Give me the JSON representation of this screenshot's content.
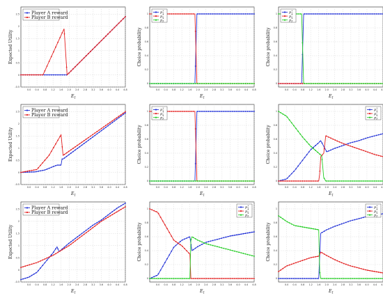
{
  "figure": {
    "xlabel_rows": [
      "E_1",
      "E_1",
      "E_1"
    ],
    "colors": {
      "player_a": "#1f2fd6",
      "player_b": "#e31f1f",
      "p1": "#1f2fd6",
      "p2": "#e31f1f",
      "p3": "#22cc22",
      "grid": "#cfcfcf"
    }
  },
  "chart_data": [
    {
      "type": "line",
      "row": 0,
      "col": 0,
      "xlabel": "E_1",
      "ylabel": "Expected Utility",
      "xlim": [
        -0.4,
        4.8
      ],
      "ylim": [
        -0.5,
        2.8
      ],
      "xticks": [
        "0.0",
        "0.4",
        "0.8",
        "1.2",
        "1.6",
        "2.0",
        "2.4",
        "2.8",
        "3.2",
        "3.6",
        "4.0",
        "4.4",
        "4.8"
      ],
      "yticks": [
        "-0.5",
        "0",
        "0.5",
        "1",
        "1.5",
        "2",
        "2.5"
      ],
      "legend": {
        "position": "top-left",
        "entries": [
          "Player A reward",
          "Player B reward"
        ]
      },
      "series": [
        {
          "name": "Player A reward",
          "color": "#1f2fd6",
          "markers": true,
          "x": [
            -0.4,
            1.9,
            4.8
          ],
          "y": [
            0,
            0,
            2.4
          ]
        },
        {
          "name": "Player B reward",
          "color": "#e31f1f",
          "markers": false,
          "x": [
            -0.4,
            0.7,
            1.75,
            1.9,
            4.8
          ],
          "y": [
            0,
            0,
            1.9,
            0,
            2.4
          ]
        }
      ]
    },
    {
      "type": "line",
      "row": 0,
      "col": 1,
      "xlabel": "E_1",
      "ylabel": "Choice probability",
      "xlim": [
        -0.4,
        4.8
      ],
      "ylim": [
        -0.05,
        1.1
      ],
      "xticks": [
        "0.0",
        "0.4",
        "0.8",
        "1.2",
        "1.6",
        "2.0",
        "2.4",
        "2.8",
        "3.2",
        "3.6",
        "4.0",
        "4.4",
        "4.8"
      ],
      "yticks": [
        "0",
        "0.2",
        "0.4",
        "0.6",
        "0.8",
        "1"
      ],
      "legend": {
        "position": "top-left",
        "entries": [
          "p1*",
          "p2*",
          "p3*"
        ]
      },
      "series": [
        {
          "name": "p1*",
          "color": "#1f2fd6",
          "x": [
            -0.4,
            1.85,
            1.95,
            4.8
          ],
          "y": [
            0,
            0,
            1,
            1
          ]
        },
        {
          "name": "p2*",
          "color": "#e31f1f",
          "x": [
            -0.4,
            1.85,
            1.95,
            4.8
          ],
          "y": [
            1,
            1,
            0,
            0
          ]
        },
        {
          "name": "p3*",
          "color": "#22cc22",
          "x": [
            -0.4,
            4.8
          ],
          "y": [
            0,
            0
          ]
        }
      ]
    },
    {
      "type": "line",
      "row": 0,
      "col": 2,
      "xlabel": "E_1",
      "ylabel": "Choice probability",
      "xlim": [
        -0.4,
        4.8
      ],
      "ylim": [
        -0.05,
        1.1
      ],
      "xticks": [
        "0.0",
        "0.4",
        "0.8",
        "1.2",
        "1.6",
        "2.0",
        "2.4",
        "2.8",
        "3.2",
        "3.6",
        "4.0",
        "4.4",
        "4.8"
      ],
      "yticks": [
        "0",
        "0.2",
        "0.4",
        "0.6",
        "0.8",
        "1"
      ],
      "legend": {
        "position": "top-left",
        "entries": [
          "p1*",
          "p2*",
          "p3*"
        ]
      },
      "series": [
        {
          "name": "p1*",
          "color": "#1f2fd6",
          "x": [
            -0.4,
            0.75,
            0.85,
            4.8
          ],
          "y": [
            0,
            0,
            1,
            1
          ]
        },
        {
          "name": "p2*",
          "color": "#e31f1f",
          "x": [
            -0.4,
            4.8
          ],
          "y": [
            0,
            0
          ]
        },
        {
          "name": "p3*",
          "color": "#22cc22",
          "x": [
            -0.4,
            0.75,
            0.85,
            4.8
          ],
          "y": [
            1,
            1,
            0,
            0
          ]
        }
      ]
    },
    {
      "type": "line",
      "row": 1,
      "col": 0,
      "xlabel": "E_1",
      "ylabel": "Expected Utility",
      "xlim": [
        -0.4,
        4.8
      ],
      "ylim": [
        -0.5,
        2.8
      ],
      "xticks": [
        "0.0",
        "0.4",
        "0.8",
        "1.2",
        "1.6",
        "2.0",
        "2.4",
        "2.8",
        "3.2",
        "3.6",
        "4.0",
        "4.4",
        "4.8"
      ],
      "yticks": [
        "-0.5",
        "0",
        "0.5",
        "1",
        "1.5",
        "2",
        "2.5"
      ],
      "legend": {
        "position": "top-left",
        "entries": [
          "Player A reward",
          "Player B reward"
        ]
      },
      "series": [
        {
          "name": "Player A reward",
          "color": "#1f2fd6",
          "markers": true,
          "x": [
            -0.4,
            0.3,
            0.8,
            1.4,
            1.6,
            1.65,
            1.7,
            4.8
          ],
          "y": [
            0,
            0.02,
            0.1,
            0.3,
            0.3,
            0.55,
            0.55,
            2.45
          ]
        },
        {
          "name": "Player B reward",
          "color": "#e31f1f",
          "markers": false,
          "x": [
            -0.4,
            0.4,
            1.0,
            1.6,
            1.7,
            4.8
          ],
          "y": [
            0,
            0.12,
            0.7,
            1.55,
            0.7,
            2.5
          ]
        }
      ]
    },
    {
      "type": "line",
      "row": 1,
      "col": 1,
      "xlabel": "E_1",
      "ylabel": "Choice probability",
      "xlim": [
        -0.4,
        4.8
      ],
      "ylim": [
        -0.05,
        1.1
      ],
      "xticks": [
        "0.0",
        "0.4",
        "0.8",
        "1.2",
        "1.6",
        "2.0",
        "2.4",
        "2.8",
        "3.2",
        "3.6",
        "4.0",
        "4.4",
        "4.8"
      ],
      "yticks": [
        "0",
        "0.2",
        "0.4",
        "0.6",
        "0.8",
        "1"
      ],
      "legend": {
        "position": "top-left",
        "entries": [
          "p1*",
          "p2*",
          "p3*"
        ]
      },
      "series": [
        {
          "name": "p1*",
          "color": "#1f2fd6",
          "x": [
            -0.4,
            1.85,
            1.95,
            4.8
          ],
          "y": [
            0,
            0,
            1,
            1
          ]
        },
        {
          "name": "p2*",
          "color": "#e31f1f",
          "x": [
            -0.4,
            1.85,
            1.95,
            4.8
          ],
          "y": [
            1,
            1,
            0,
            0
          ]
        },
        {
          "name": "p3*",
          "color": "#22cc22",
          "x": [
            -0.4,
            4.8
          ],
          "y": [
            0,
            0
          ]
        }
      ]
    },
    {
      "type": "line",
      "row": 1,
      "col": 2,
      "xlabel": "E_1",
      "ylabel": "Choice probability",
      "xlim": [
        -0.4,
        4.8
      ],
      "ylim": [
        -0.05,
        1.1
      ],
      "xticks": [
        "0.0",
        "0.4",
        "0.8",
        "1.2",
        "1.6",
        "2.0",
        "2.4",
        "2.8",
        "3.2",
        "3.6",
        "4.0",
        "4.4",
        "4.8"
      ],
      "yticks": [
        "0",
        "0.2",
        "0.4",
        "0.6",
        "0.8",
        "1"
      ],
      "legend": {
        "position": "top-right",
        "entries": [
          "p1*",
          "p2*",
          "p3*"
        ]
      },
      "series": [
        {
          "name": "p1*",
          "color": "#1f2fd6",
          "x": [
            -0.4,
            0.0,
            0.4,
            0.8,
            1.2,
            1.6,
            1.7,
            2.0,
            2.4,
            2.8,
            3.2,
            3.6,
            4.0,
            4.4,
            4.8
          ],
          "y": [
            0,
            0.03,
            0.15,
            0.3,
            0.45,
            0.55,
            0.58,
            0.42,
            0.47,
            0.51,
            0.55,
            0.58,
            0.62,
            0.65,
            0.68
          ]
        },
        {
          "name": "p2*",
          "color": "#e31f1f",
          "x": [
            -0.4,
            1.6,
            1.65,
            1.7,
            1.85,
            1.95,
            2.4,
            2.8,
            3.2,
            3.6,
            4.0,
            4.4,
            4.8
          ],
          "y": [
            0,
            0,
            0.1,
            0.35,
            0.4,
            0.65,
            0.59,
            0.54,
            0.5,
            0.46,
            0.42,
            0.38,
            0.35
          ]
        },
        {
          "name": "p3*",
          "color": "#22cc22",
          "x": [
            -0.4,
            0.0,
            0.4,
            0.8,
            1.2,
            1.6,
            1.75,
            1.85,
            1.95,
            4.8
          ],
          "y": [
            1,
            0.93,
            0.78,
            0.63,
            0.5,
            0.4,
            0.36,
            0.05,
            0,
            0
          ]
        }
      ]
    },
    {
      "type": "line",
      "row": 2,
      "col": 0,
      "xlabel": "E_1",
      "ylabel": "Expected Utility",
      "xlim": [
        -0.4,
        4.8
      ],
      "ylim": [
        -0.5,
        2.8
      ],
      "xticks": [
        "0.0",
        "0.4",
        "0.8",
        "1.2",
        "1.6",
        "2.0",
        "2.4",
        "2.8",
        "3.2",
        "3.6",
        "4.0",
        "4.4",
        "4.8"
      ],
      "yticks": [
        "-0.5",
        "0",
        "0.5",
        "1",
        "1.5",
        "2",
        "2.5"
      ],
      "legend": {
        "position": "top-left",
        "entries": [
          "Player A reward",
          "Player B reward"
        ]
      },
      "series": [
        {
          "name": "Player A reward",
          "color": "#1f2fd6",
          "markers": true,
          "x": [
            -0.4,
            0.0,
            0.4,
            0.8,
            1.2,
            1.4,
            1.5,
            2.0,
            2.4,
            2.8,
            3.2,
            3.6,
            4.0,
            4.4,
            4.8
          ],
          "y": [
            -0.4,
            -0.3,
            -0.1,
            0.3,
            0.7,
            0.95,
            0.75,
            1.1,
            1.35,
            1.6,
            1.85,
            2.05,
            2.3,
            2.55,
            2.75
          ]
        },
        {
          "name": "Player B reward",
          "color": "#e31f1f",
          "markers": false,
          "x": [
            -0.4,
            0.4,
            0.8,
            1.2,
            1.6,
            2.0,
            2.4,
            2.8,
            3.2,
            3.6,
            4.0,
            4.4,
            4.8
          ],
          "y": [
            0.1,
            0.3,
            0.45,
            0.6,
            0.8,
            1.0,
            1.25,
            1.5,
            1.75,
            2.0,
            2.2,
            2.4,
            2.6
          ]
        }
      ]
    },
    {
      "type": "line",
      "row": 2,
      "col": 1,
      "xlabel": "E_1",
      "ylabel": "Choice probability",
      "xlim": [
        -0.4,
        4.8
      ],
      "ylim": [
        -0.05,
        1.1
      ],
      "xticks": [
        "0.0",
        "0.4",
        "0.8",
        "1.2",
        "1.6",
        "2.0",
        "2.4",
        "2.8",
        "3.2",
        "3.6",
        "4.0",
        "4.4",
        "4.8"
      ],
      "yticks": [
        "0",
        "0.2",
        "0.4",
        "0.6",
        "0.8",
        "1"
      ],
      "legend": {
        "position": "top-right",
        "entries": [
          "p1*",
          "p2*",
          "p3*"
        ]
      },
      "series": [
        {
          "name": "p1*",
          "color": "#1f2fd6",
          "x": [
            -0.4,
            0.0,
            0.4,
            0.8,
            1.2,
            1.6,
            1.7,
            2.0,
            2.4,
            2.8,
            3.2,
            3.6,
            4.0,
            4.4,
            4.8
          ],
          "y": [
            0,
            0.05,
            0.25,
            0.45,
            0.55,
            0.6,
            0.4,
            0.46,
            0.52,
            0.55,
            0.58,
            0.61,
            0.63,
            0.65,
            0.67
          ]
        },
        {
          "name": "p2*",
          "color": "#e31f1f",
          "x": [
            -0.4,
            0.0,
            0.4,
            0.8,
            1.2,
            1.5,
            1.6,
            1.65,
            4.8
          ],
          "y": [
            1,
            0.95,
            0.75,
            0.55,
            0.47,
            0.38,
            0.35,
            0,
            0
          ]
        },
        {
          "name": "p3*",
          "color": "#22cc22",
          "x": [
            -0.4,
            1.6,
            1.65,
            1.7,
            2.0,
            2.4,
            2.8,
            3.2,
            3.6,
            4.0,
            4.4,
            4.8
          ],
          "y": [
            0,
            0,
            0.55,
            0.6,
            0.55,
            0.5,
            0.47,
            0.44,
            0.41,
            0.38,
            0.35,
            0.32
          ]
        }
      ]
    },
    {
      "type": "line",
      "row": 2,
      "col": 2,
      "xlabel": "E_1",
      "ylabel": "Choice probability",
      "xlim": [
        -0.4,
        4.8
      ],
      "ylim": [
        -0.05,
        1.1
      ],
      "xticks": [
        "0.0",
        "0.4",
        "0.8",
        "1.2",
        "1.6",
        "2.0",
        "2.4",
        "2.8",
        "3.2",
        "3.6",
        "4.0",
        "4.4",
        "4.8"
      ],
      "yticks": [
        "0",
        "0.2",
        "0.4",
        "0.6",
        "0.8",
        "1"
      ],
      "legend": {
        "position": "top-right",
        "entries": [
          "p1*",
          "p2*",
          "p3*"
        ]
      },
      "series": [
        {
          "name": "p1*",
          "color": "#1f2fd6",
          "x": [
            -0.4,
            1.6,
            1.7,
            2.0,
            2.4,
            2.8,
            3.2,
            3.6,
            4.0,
            4.4,
            4.8
          ],
          "y": [
            0,
            0,
            0.65,
            0.7,
            0.75,
            0.79,
            0.83,
            0.86,
            0.89,
            0.91,
            0.93
          ]
        },
        {
          "name": "p2*",
          "color": "#e31f1f",
          "x": [
            -0.4,
            0.0,
            0.4,
            0.8,
            1.2,
            1.6,
            1.7,
            2.0,
            2.4,
            2.8,
            3.2,
            3.6,
            4.0,
            4.4,
            4.8
          ],
          "y": [
            0.1,
            0.18,
            0.22,
            0.26,
            0.3,
            0.32,
            0.38,
            0.33,
            0.27,
            0.22,
            0.18,
            0.15,
            0.12,
            0.1,
            0.08
          ]
        },
        {
          "name": "p3*",
          "color": "#22cc22",
          "x": [
            -0.4,
            0.0,
            0.4,
            0.8,
            1.2,
            1.6,
            1.65,
            1.7,
            4.8
          ],
          "y": [
            0.9,
            0.82,
            0.76,
            0.74,
            0.72,
            0.7,
            0.1,
            0,
            0
          ]
        }
      ]
    }
  ]
}
